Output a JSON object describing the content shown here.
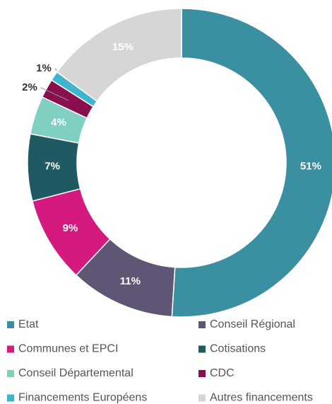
{
  "chart_data": {
    "type": "donut",
    "categories": [
      "Etat",
      "Conseil Régional",
      "Communes et EPCI",
      "Cotisations",
      "Conseil Départemental",
      "CDC",
      "Financements Européens",
      "Autres financements"
    ],
    "values": [
      51,
      11,
      9,
      7,
      4,
      2,
      1,
      15
    ],
    "value_labels": [
      "51%",
      "11%",
      "9%",
      "7%",
      "4%",
      "2%",
      "1%",
      "15%"
    ],
    "colors": [
      "#3a8fa0",
      "#5e5674",
      "#d4197f",
      "#1f5a63",
      "#7fcfc3",
      "#8a0f4e",
      "#3bb5d0",
      "#d6d6d6"
    ]
  }
}
